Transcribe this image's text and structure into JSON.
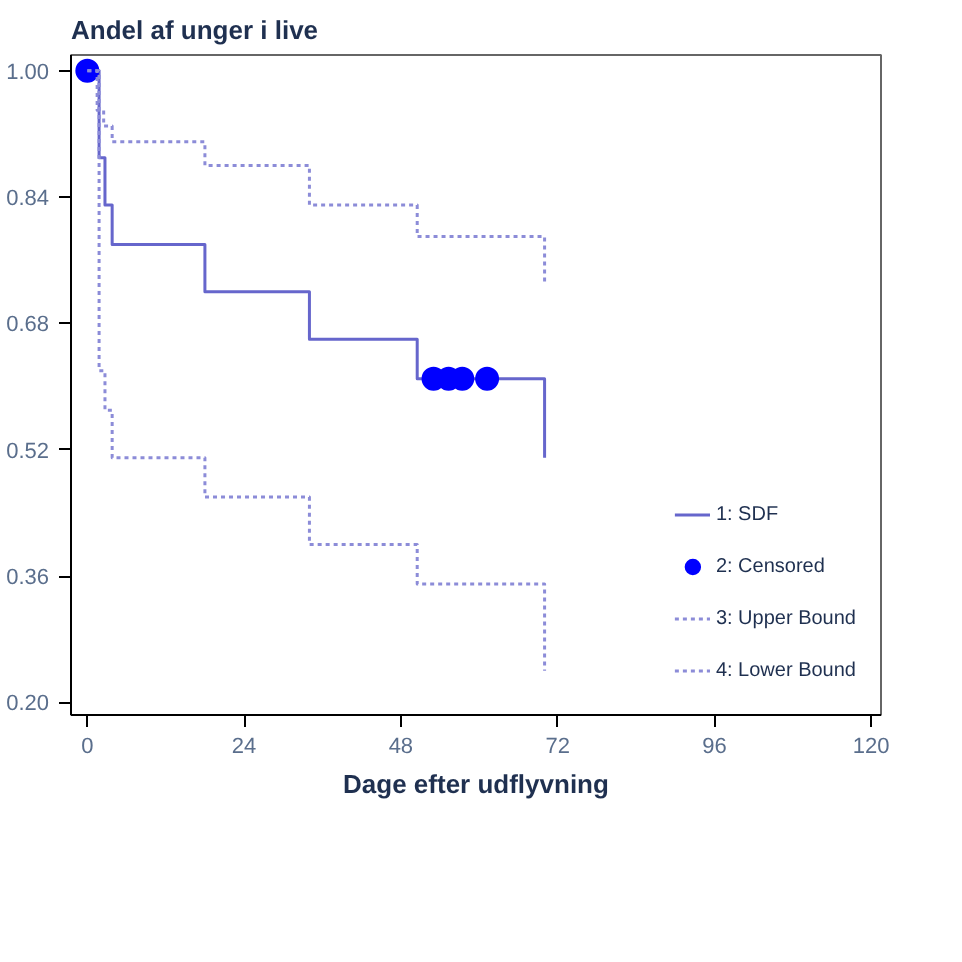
{
  "chart_data": {
    "type": "step",
    "ylabel": "Andel af unger i live",
    "xlabel": "Dage efter udflyvning",
    "xlim": [
      -2.5,
      121.5
    ],
    "ylim": [
      0.184,
      1.02
    ],
    "xticks": [
      0,
      24,
      48,
      72,
      96,
      120
    ],
    "yticks": [
      {
        "value": 0.2,
        "label": "0.20"
      },
      {
        "value": 0.36,
        "label": "0.36"
      },
      {
        "value": 0.52,
        "label": "0.52"
      },
      {
        "value": 0.68,
        "label": "0.68"
      },
      {
        "value": 0.84,
        "label": "0.84"
      },
      {
        "value": 1.0,
        "label": "1.00"
      }
    ],
    "grid": false,
    "legend": "bottom right",
    "series": [
      {
        "name": "1: SDF",
        "color": "#6666cc",
        "line_style": "solid",
        "x": [
          0,
          1.8,
          2.7,
          3.8,
          18,
          34,
          50.5,
          70
        ],
        "values": [
          1.0,
          0.89,
          0.83,
          0.78,
          0.72,
          0.66,
          0.61,
          0.51
        ]
      },
      {
        "name": "2: Censored",
        "type": "scatter",
        "color": "#0000ff",
        "marker": "circle",
        "x": [
          0,
          53,
          55.3,
          57.4,
          61.2
        ],
        "values": [
          1.0,
          0.61,
          0.61,
          0.61,
          0.61
        ]
      },
      {
        "name": "3: Upper Bound",
        "color": "#8c8cd8",
        "line_style": "dotted",
        "x": [
          0,
          1.5,
          2.5,
          3.8,
          18,
          34,
          50.5,
          70
        ],
        "values": [
          1.0,
          0.95,
          0.93,
          0.91,
          0.88,
          0.83,
          0.79,
          0.73
        ]
      },
      {
        "name": "4: Lower Bound",
        "color": "#8c8cd8",
        "line_style": "dotted",
        "x": [
          0,
          1.8,
          2.7,
          3.8,
          18,
          34,
          50.5,
          70
        ],
        "values": [
          1.0,
          0.62,
          0.57,
          0.51,
          0.46,
          0.4,
          0.35,
          0.24
        ]
      }
    ]
  }
}
